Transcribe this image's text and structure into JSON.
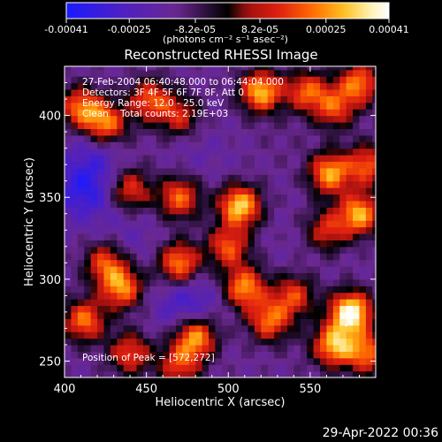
{
  "chart_data": {
    "type": "heatmap",
    "title": "Reconstructed RHESSI Image",
    "xlabel": "Heliocentric X (arcsec)",
    "ylabel": "Heliocentric Y (arcsec)",
    "xlim": [
      400,
      590
    ],
    "ylim": [
      240,
      430
    ],
    "x_ticks": [
      400,
      450,
      500,
      550
    ],
    "y_ticks": [
      250,
      300,
      350,
      400
    ],
    "x_tick_labels": [
      "400",
      "450",
      "500",
      "550"
    ],
    "y_tick_labels": [
      "250",
      "300",
      "350",
      "400"
    ],
    "colorbar": {
      "range": [
        -0.00041,
        0.00041
      ],
      "tick_values": [
        -0.00041,
        -0.00025,
        -8.2e-05,
        8.2e-05,
        0.00025,
        0.00041
      ],
      "tick_labels": [
        "-0.00041",
        "-0.00025",
        "-8.2e-05",
        "8.2e-05",
        "0.00025",
        "0.00041"
      ],
      "units": "(photons cm⁻² s⁻¹ asec⁻²)",
      "colors": [
        "#1a1aff",
        "#5020c0",
        "#6a2890",
        "#000000",
        "#a01010",
        "#e02010",
        "#ff6a00",
        "#ffc020",
        "#fff0b0",
        "#ffffff"
      ]
    },
    "annotations": [
      "27-Feb-2004 06:40:48.000 to 06:44:04.000",
      "Detectors: 3F 4F 5F 6F 7F 8F, Att 0",
      "Energy Range: 12.0 - 25.0 keV",
      "Clean    Total counts: 2.19E+03"
    ],
    "peak_label": "Position of Peak = [572,272]",
    "peak": [
      572,
      272
    ],
    "bright_sources": [
      {
        "x": 410,
        "y": 405,
        "value": 0.00022
      },
      {
        "x": 425,
        "y": 395,
        "value": 0.00025
      },
      {
        "x": 452,
        "y": 410,
        "value": 0.00018
      },
      {
        "x": 470,
        "y": 400,
        "value": 0.00012
      },
      {
        "x": 520,
        "y": 415,
        "value": 0.0003
      },
      {
        "x": 548,
        "y": 415,
        "value": 0.00018
      },
      {
        "x": 565,
        "y": 405,
        "value": 0.00015
      },
      {
        "x": 580,
        "y": 420,
        "value": 0.00022
      },
      {
        "x": 562,
        "y": 365,
        "value": 0.00027
      },
      {
        "x": 585,
        "y": 370,
        "value": 0.00018
      },
      {
        "x": 507,
        "y": 345,
        "value": 0.00033
      },
      {
        "x": 470,
        "y": 350,
        "value": 0.0002
      },
      {
        "x": 440,
        "y": 355,
        "value": 0.00015
      },
      {
        "x": 580,
        "y": 340,
        "value": 0.00028
      },
      {
        "x": 560,
        "y": 330,
        "value": 0.00012
      },
      {
        "x": 470,
        "y": 310,
        "value": 0.00025
      },
      {
        "x": 500,
        "y": 320,
        "value": 0.00018
      },
      {
        "x": 425,
        "y": 310,
        "value": 0.00017
      },
      {
        "x": 435,
        "y": 295,
        "value": 0.00024
      },
      {
        "x": 510,
        "y": 295,
        "value": 0.00025
      },
      {
        "x": 540,
        "y": 290,
        "value": 0.00015
      },
      {
        "x": 575,
        "y": 280,
        "value": 0.00041
      },
      {
        "x": 565,
        "y": 260,
        "value": 0.00028
      },
      {
        "x": 412,
        "y": 275,
        "value": 0.00022
      },
      {
        "x": 480,
        "y": 265,
        "value": 0.00028
      },
      {
        "x": 525,
        "y": 275,
        "value": 0.0002
      },
      {
        "x": 470,
        "y": 248,
        "value": 0.00015
      },
      {
        "x": 440,
        "y": 255,
        "value": 0.00016
      },
      {
        "x": 585,
        "y": 255,
        "value": 0.0002
      }
    ],
    "dim_regions": [
      {
        "x": 412,
        "y": 355,
        "value": -0.00035
      },
      {
        "x": 440,
        "y": 385,
        "value": -0.00012
      },
      {
        "x": 480,
        "y": 380,
        "value": -0.00018
      },
      {
        "x": 475,
        "y": 285,
        "value": -0.0003
      },
      {
        "x": 440,
        "y": 325,
        "value": -0.0002
      },
      {
        "x": 505,
        "y": 365,
        "value": -0.00015
      },
      {
        "x": 530,
        "y": 385,
        "value": -0.00012
      },
      {
        "x": 540,
        "y": 320,
        "value": -0.00015
      },
      {
        "x": 495,
        "y": 260,
        "value": -0.00014
      },
      {
        "x": 550,
        "y": 260,
        "value": -0.00012
      },
      {
        "x": 420,
        "y": 380,
        "value": -0.00025
      }
    ]
  },
  "footer_timestamp": "29-Apr-2022 00:36"
}
